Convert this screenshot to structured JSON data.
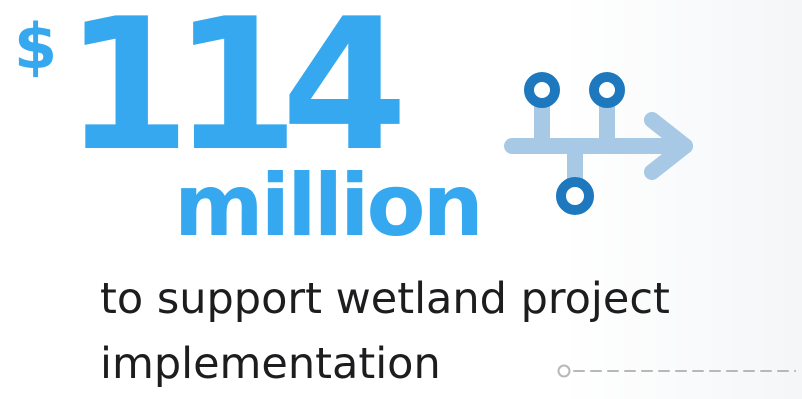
{
  "amount": {
    "currency_symbol": "$",
    "number": "114",
    "unit": "million"
  },
  "caption": {
    "line1": "to support wetland project",
    "line2": "implementation"
  },
  "colors": {
    "accent": "#35a8ef",
    "dark_accent": "#1d78bd",
    "light_accent": "#a8c9e6",
    "text": "#1d1d1f",
    "connector": "#b8b8b8"
  },
  "icons": {
    "main_graphic": "branching-flow-icon",
    "connector": "dotted-line-connector-icon"
  }
}
